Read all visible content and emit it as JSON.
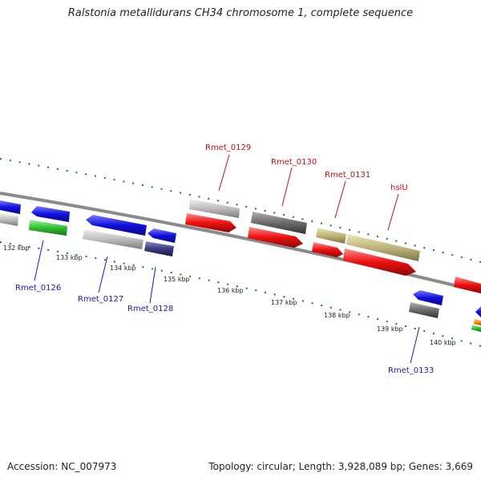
{
  "title": "Ralstonia metallidurans CH34 chromosome 1, complete sequence",
  "footer": {
    "accession": "Accession: NC_007973",
    "summary": "Topology: circular; Length: 3,928,089 bp; Genes: 3,669"
  },
  "ticks": [
    "132 kbp",
    "133 kbp",
    "134 kbp",
    "135 kbp",
    "136 kbp",
    "137 kbp",
    "138 kbp",
    "139 kbp",
    "140 kbp"
  ],
  "gene_labels": {
    "rmet_0126": "Rmet_0126",
    "rmet_0127": "Rmet_0127",
    "rmet_0128": "Rmet_0128",
    "rmet_0129": "Rmet_0129",
    "rmet_0130": "Rmet_0130",
    "rmet_0131": "Rmet_0131",
    "hslu": "hslU",
    "rmet_0133": "Rmet_0133"
  },
  "colors": {
    "blue": "#1010e0",
    "navy": "#3a3a80",
    "red": "#ee1010",
    "green": "#30c030",
    "lightgray": "#bdbdbd",
    "darkgray": "#6b6b6b",
    "khaki": "#bdb57a",
    "backbone": "#8a8a8a",
    "tick_green": "#1a7a1a",
    "label_red": "#c0101a",
    "label_blue": "#1a1ab0"
  }
}
